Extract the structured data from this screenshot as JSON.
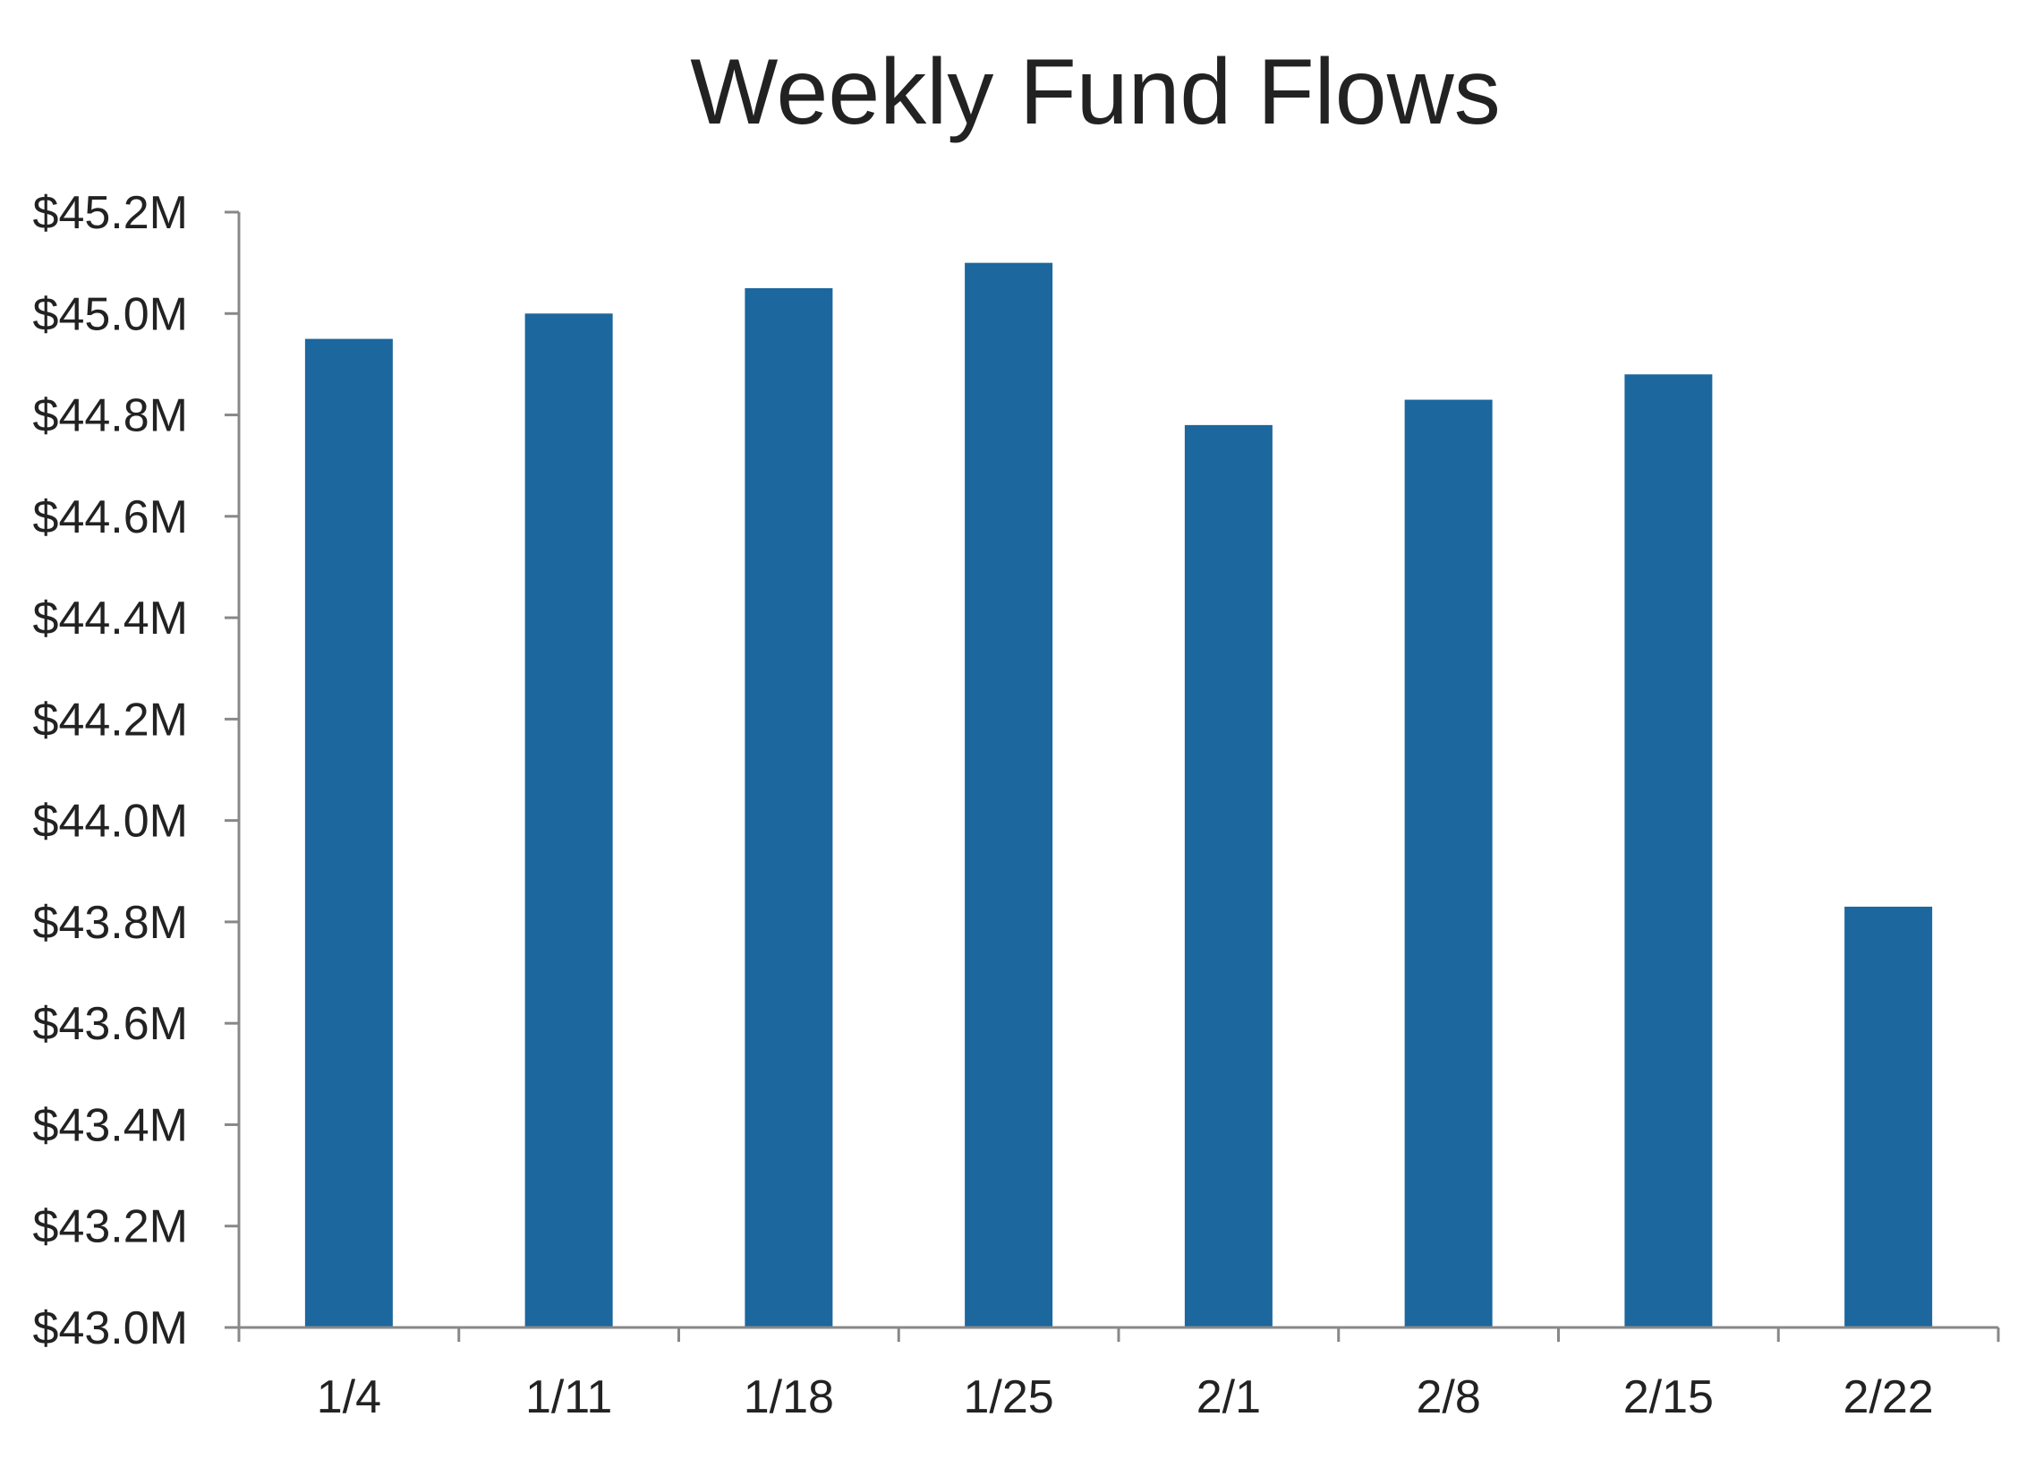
{
  "chart_data": {
    "type": "bar",
    "title": "Weekly Fund Flows",
    "xlabel": "",
    "ylabel": "",
    "categories": [
      "1/4",
      "1/11",
      "1/18",
      "1/25",
      "2/1",
      "2/8",
      "2/15",
      "2/22"
    ],
    "values": [
      44.95,
      45.0,
      45.05,
      45.1,
      44.78,
      44.83,
      44.88,
      43.83
    ],
    "ylim": [
      43.0,
      45.2
    ],
    "yticks": [
      43.0,
      43.2,
      43.4,
      43.6,
      43.8,
      44.0,
      44.2,
      44.4,
      44.6,
      44.8,
      45.0,
      45.2
    ],
    "ytick_labels": [
      "$43.0M",
      "$43.2M",
      "$43.4M",
      "$43.6M",
      "$43.8M",
      "$44.0M",
      "$44.2M",
      "$44.4M",
      "$44.6M",
      "$44.8M",
      "$45.0M",
      "$45.2M"
    ],
    "grid": false,
    "legend": "none",
    "bar_color": "#1b679e",
    "axis_color": "#888888",
    "text_color": "#222222"
  }
}
